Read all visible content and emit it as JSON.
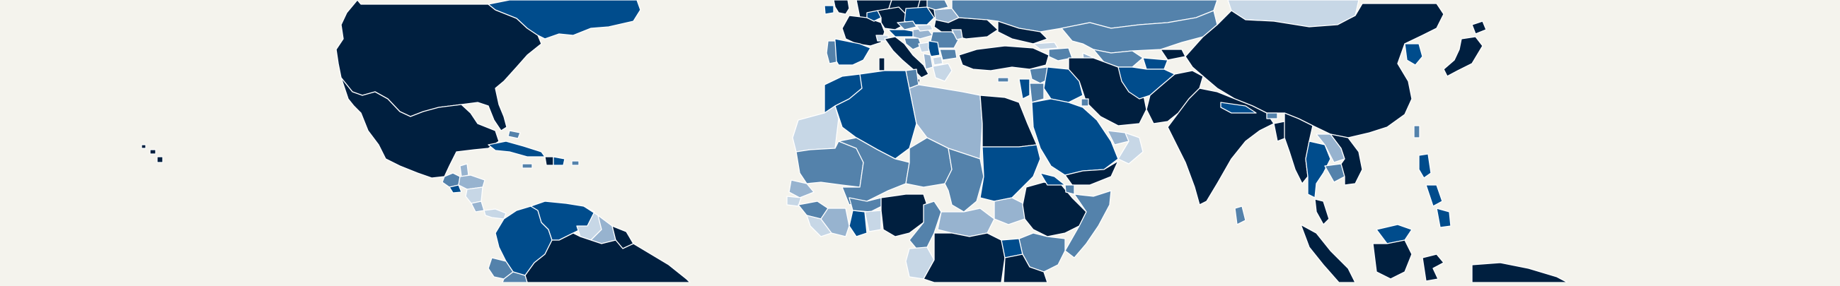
{
  "map": {
    "title": "",
    "background": "#f4f3ed",
    "border_color": "#ffffff",
    "palette": {
      "c1": "#001f3f",
      "c2": "#004c8c",
      "c3": "#5482ab",
      "c4": "#97b3cf",
      "c5": "#c7d7e6"
    },
    "regions": [
      {
        "name": "united-states",
        "cls": "c1"
      },
      {
        "name": "canada-east",
        "cls": "c2"
      },
      {
        "name": "mexico",
        "cls": "c1"
      },
      {
        "name": "guatemala",
        "cls": "c3"
      },
      {
        "name": "belize",
        "cls": "c4"
      },
      {
        "name": "honduras",
        "cls": "c4"
      },
      {
        "name": "el-salvador",
        "cls": "c2"
      },
      {
        "name": "nicaragua",
        "cls": "c5"
      },
      {
        "name": "costa-rica",
        "cls": "c4"
      },
      {
        "name": "panama",
        "cls": "c5"
      },
      {
        "name": "cuba",
        "cls": "c2"
      },
      {
        "name": "bahamas",
        "cls": "c3"
      },
      {
        "name": "jamaica",
        "cls": "c3"
      },
      {
        "name": "haiti",
        "cls": "c1"
      },
      {
        "name": "dominican-republic",
        "cls": "c2"
      },
      {
        "name": "puerto-rico",
        "cls": "c3"
      },
      {
        "name": "hawaii",
        "cls": "c1"
      },
      {
        "name": "colombia",
        "cls": "c2"
      },
      {
        "name": "venezuela",
        "cls": "c2"
      },
      {
        "name": "ecuador",
        "cls": "c3"
      },
      {
        "name": "guyana",
        "cls": "c5"
      },
      {
        "name": "suriname",
        "cls": "c4"
      },
      {
        "name": "french-guiana",
        "cls": "c1"
      },
      {
        "name": "brazil",
        "cls": "c1"
      },
      {
        "name": "peru",
        "cls": "c3"
      },
      {
        "name": "norway",
        "cls": "c1"
      },
      {
        "name": "sweden",
        "cls": "c1"
      },
      {
        "name": "finland",
        "cls": "c1"
      },
      {
        "name": "uk",
        "cls": "c1"
      },
      {
        "name": "ireland",
        "cls": "c2"
      },
      {
        "name": "france",
        "cls": "c1"
      },
      {
        "name": "belgium-netherlands",
        "cls": "c2"
      },
      {
        "name": "germany",
        "cls": "c1"
      },
      {
        "name": "poland",
        "cls": "c2"
      },
      {
        "name": "baltics",
        "cls": "c3"
      },
      {
        "name": "belarus",
        "cls": "c4"
      },
      {
        "name": "ukraine",
        "cls": "c1"
      },
      {
        "name": "czech-republic",
        "cls": "c3"
      },
      {
        "name": "austria",
        "cls": "c2"
      },
      {
        "name": "hungary",
        "cls": "c4"
      },
      {
        "name": "slovakia",
        "cls": "c5"
      },
      {
        "name": "romania",
        "cls": "c3"
      },
      {
        "name": "moldova",
        "cls": "c4"
      },
      {
        "name": "switzerland",
        "cls": "c5"
      },
      {
        "name": "italy",
        "cls": "c1"
      },
      {
        "name": "sicily",
        "cls": "c1"
      },
      {
        "name": "sardinia",
        "cls": "c1"
      },
      {
        "name": "slovenia-croatia",
        "cls": "c3"
      },
      {
        "name": "bosnia",
        "cls": "c5"
      },
      {
        "name": "serbia",
        "cls": "c2"
      },
      {
        "name": "montenegro-albania",
        "cls": "c4"
      },
      {
        "name": "north-macedonia",
        "cls": "c5"
      },
      {
        "name": "bulgaria",
        "cls": "c3"
      },
      {
        "name": "greece",
        "cls": "c5"
      },
      {
        "name": "spain",
        "cls": "c2"
      },
      {
        "name": "portugal",
        "cls": "c3"
      },
      {
        "name": "turkey",
        "cls": "c1"
      },
      {
        "name": "cyprus",
        "cls": "c3"
      },
      {
        "name": "russia",
        "cls": "c3"
      },
      {
        "name": "russia-south",
        "cls": "c1"
      },
      {
        "name": "georgia",
        "cls": "c5"
      },
      {
        "name": "armenia-azerbaijan",
        "cls": "c3"
      },
      {
        "name": "kazakhstan",
        "cls": "c3"
      },
      {
        "name": "uzbekistan",
        "cls": "c3"
      },
      {
        "name": "turkmenistan",
        "cls": "c4"
      },
      {
        "name": "kyrgyzstan",
        "cls": "c1"
      },
      {
        "name": "tajikistan",
        "cls": "c2"
      },
      {
        "name": "mongolia",
        "cls": "c5"
      },
      {
        "name": "china",
        "cls": "c1"
      },
      {
        "name": "taiwan",
        "cls": "c3"
      },
      {
        "name": "korea",
        "cls": "c2"
      },
      {
        "name": "japan",
        "cls": "c1"
      },
      {
        "name": "syria",
        "cls": "c3"
      },
      {
        "name": "lebanon-israel",
        "cls": "c2"
      },
      {
        "name": "jordan",
        "cls": "c3"
      },
      {
        "name": "iraq",
        "cls": "c2"
      },
      {
        "name": "iran",
        "cls": "c1"
      },
      {
        "name": "kuwait",
        "cls": "c3"
      },
      {
        "name": "saudi-arabia",
        "cls": "c2"
      },
      {
        "name": "uae-qatar",
        "cls": "c4"
      },
      {
        "name": "oman",
        "cls": "c5"
      },
      {
        "name": "yemen",
        "cls": "c1"
      },
      {
        "name": "afghanistan",
        "cls": "c2"
      },
      {
        "name": "pakistan",
        "cls": "c1"
      },
      {
        "name": "india",
        "cls": "c1"
      },
      {
        "name": "nepal",
        "cls": "c2"
      },
      {
        "name": "bhutan",
        "cls": "c3"
      },
      {
        "name": "bangladesh",
        "cls": "c1"
      },
      {
        "name": "sri-lanka",
        "cls": "c3"
      },
      {
        "name": "myanmar",
        "cls": "c1"
      },
      {
        "name": "thailand",
        "cls": "c2"
      },
      {
        "name": "laos",
        "cls": "c4"
      },
      {
        "name": "cambodia",
        "cls": "c3"
      },
      {
        "name": "vietnam",
        "cls": "c1"
      },
      {
        "name": "malaysia-peninsula",
        "cls": "c1"
      },
      {
        "name": "sumatra",
        "cls": "c1"
      },
      {
        "name": "borneo-malaysia",
        "cls": "c2"
      },
      {
        "name": "borneo-indonesia",
        "cls": "c1"
      },
      {
        "name": "sulawesi",
        "cls": "c1"
      },
      {
        "name": "new-guinea",
        "cls": "c1"
      },
      {
        "name": "philippines",
        "cls": "c2"
      },
      {
        "name": "morocco",
        "cls": "c2"
      },
      {
        "name": "western-sahara",
        "cls": "c5"
      },
      {
        "name": "algeria",
        "cls": "c2"
      },
      {
        "name": "tunisia",
        "cls": "c3"
      },
      {
        "name": "libya",
        "cls": "c4"
      },
      {
        "name": "egypt",
        "cls": "c1"
      },
      {
        "name": "mauritania",
        "cls": "c3"
      },
      {
        "name": "mali",
        "cls": "c3"
      },
      {
        "name": "niger",
        "cls": "c3"
      },
      {
        "name": "chad",
        "cls": "c3"
      },
      {
        "name": "sudan",
        "cls": "c2"
      },
      {
        "name": "south-sudan",
        "cls": "c4"
      },
      {
        "name": "senegal",
        "cls": "c4"
      },
      {
        "name": "gambia-guinea-bissau",
        "cls": "c5"
      },
      {
        "name": "guinea",
        "cls": "c3"
      },
      {
        "name": "sierra-leone-liberia",
        "cls": "c5"
      },
      {
        "name": "cote-divoire",
        "cls": "c4"
      },
      {
        "name": "burkina-faso",
        "cls": "c3"
      },
      {
        "name": "ghana",
        "cls": "c2"
      },
      {
        "name": "togo-benin",
        "cls": "c5"
      },
      {
        "name": "nigeria",
        "cls": "c1"
      },
      {
        "name": "cameroon",
        "cls": "c3"
      },
      {
        "name": "central-african-republic",
        "cls": "c4"
      },
      {
        "name": "ethiopia",
        "cls": "c1"
      },
      {
        "name": "eritrea",
        "cls": "c2"
      },
      {
        "name": "djibouti",
        "cls": "c3"
      },
      {
        "name": "somalia",
        "cls": "c3"
      },
      {
        "name": "gabon-congo",
        "cls": "c5"
      },
      {
        "name": "dr-congo",
        "cls": "c1"
      },
      {
        "name": "uganda",
        "cls": "c2"
      },
      {
        "name": "kenya",
        "cls": "c3"
      },
      {
        "name": "tanzania",
        "cls": "c1"
      }
    ]
  }
}
